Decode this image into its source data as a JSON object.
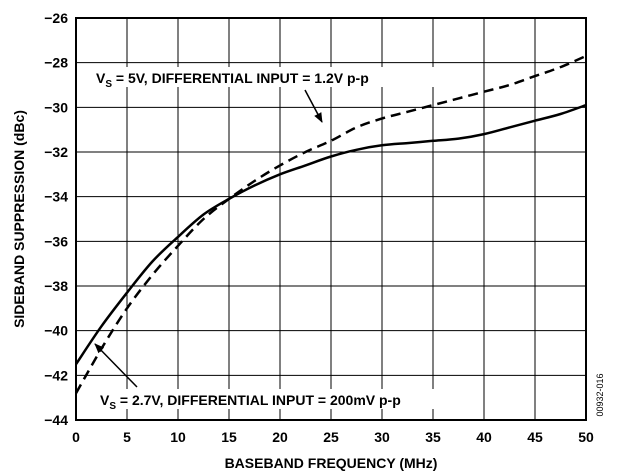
{
  "chart_data": {
    "type": "line",
    "title": "",
    "xlabel": "BASEBAND FREQUENCY (MHz)",
    "ylabel": "SIDEBAND SUPPRESSION (dBc)",
    "xlim": [
      0,
      50
    ],
    "ylim": [
      -44,
      -26
    ],
    "xticks": [
      0,
      5,
      10,
      15,
      20,
      25,
      30,
      35,
      40,
      45,
      50
    ],
    "yticks": [
      -44,
      -42,
      -40,
      -38,
      -36,
      -34,
      -32,
      -30,
      -28,
      -26
    ],
    "grid": true,
    "series": [
      {
        "style": "solid",
        "x": [
          0,
          2.5,
          5,
          7.5,
          10,
          12.5,
          15,
          17.5,
          20,
          22.5,
          25,
          27.5,
          30,
          32.5,
          35,
          37.5,
          40,
          42.5,
          45,
          47.5,
          50
        ],
        "y": [
          -41.5,
          -39.8,
          -38.3,
          -36.9,
          -35.8,
          -34.8,
          -34.1,
          -33.5,
          -33.0,
          -32.6,
          -32.2,
          -31.9,
          -31.7,
          -31.6,
          -31.5,
          -31.4,
          -31.2,
          -30.9,
          -30.6,
          -30.3,
          -29.9
        ]
      },
      {
        "style": "dashed",
        "x": [
          0,
          2.5,
          5,
          7.5,
          10,
          12.5,
          15,
          17.5,
          20,
          22.5,
          25,
          27.5,
          30,
          32.5,
          35,
          37.5,
          40,
          42.5,
          45,
          47.5,
          50
        ],
        "y": [
          -42.8,
          -40.8,
          -39.0,
          -37.5,
          -36.2,
          -35.0,
          -34.1,
          -33.3,
          -32.6,
          -32.0,
          -31.5,
          -30.9,
          -30.5,
          -30.2,
          -29.9,
          -29.6,
          -29.3,
          -29.0,
          -28.6,
          -28.2,
          -27.7
        ]
      }
    ],
    "annotations": [
      {
        "id": "vs5",
        "prefix": "V",
        "sub": "S",
        "text": " = 5V, DIFFERENTIAL INPUT = 1.2V p-p"
      },
      {
        "id": "vs27",
        "prefix": "V",
        "sub": "S",
        "text": " = 2.7V, DIFFERENTIAL INPUT = 200mV p-p"
      }
    ],
    "figure_id": "00932-016"
  }
}
